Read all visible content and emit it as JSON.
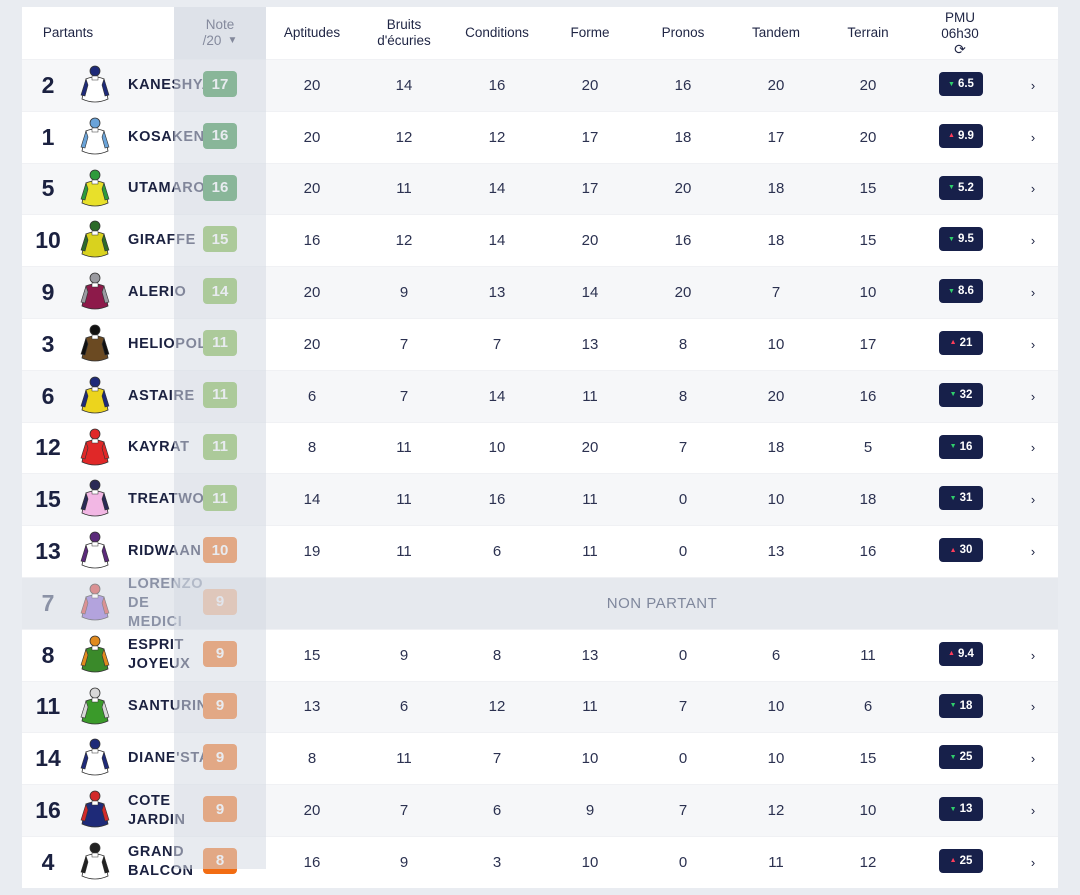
{
  "header": {
    "partants": "Partants",
    "note_line1": "Note",
    "note_line2": "/20",
    "sort_icon": "caret-down",
    "aptitudes": "Aptitudes",
    "bruits_line1": "Bruits",
    "bruits_line2": "d'écuries",
    "conditions": "Conditions",
    "forme": "Forme",
    "pronos": "Pronos",
    "tandem": "Tandem",
    "terrain": "Terrain",
    "pmu_line1": "PMU",
    "pmu_line2": "06h30",
    "refresh_icon": "⟳"
  },
  "non_partant_label": "NON PARTANT",
  "colors": {
    "dark_green": "#2e8b3e",
    "green": "#7ab641",
    "orange": "#f26c12",
    "odds_bg": "#17204a",
    "down": "#2fce6b",
    "up": "#ff3d5a"
  },
  "rows": [
    {
      "num": "2",
      "name": "KANESHYA",
      "note": "17",
      "note_color": "#2e8b3e",
      "aptitudes": "20",
      "bruits": "14",
      "conditions": "16",
      "forme": "20",
      "pronos": "16",
      "tandem": "20",
      "terrain": "20",
      "odds": "6.5",
      "trend": "down",
      "silk": [
        "#ffffff",
        "#1e2a78"
      ]
    },
    {
      "num": "1",
      "name": "KOSAKENZ EL",
      "note": "16",
      "note_color": "#2e8b3e",
      "aptitudes": "20",
      "bruits": "12",
      "conditions": "12",
      "forme": "17",
      "pronos": "18",
      "tandem": "17",
      "terrain": "20",
      "odds": "9.9",
      "trend": "up",
      "silk": [
        "#ffffff",
        "#6aa3d8"
      ]
    },
    {
      "num": "5",
      "name": "UTAMARO",
      "note": "16",
      "note_color": "#2e8b3e",
      "aptitudes": "20",
      "bruits": "11",
      "conditions": "14",
      "forme": "17",
      "pronos": "20",
      "tandem": "18",
      "terrain": "15",
      "odds": "5.2",
      "trend": "down",
      "silk": [
        "#e8e02a",
        "#2e9a3c"
      ]
    },
    {
      "num": "10",
      "name": "GIRAFFE",
      "note": "15",
      "note_color": "#7ab641",
      "aptitudes": "16",
      "bruits": "12",
      "conditions": "14",
      "forme": "20",
      "pronos": "16",
      "tandem": "18",
      "terrain": "15",
      "odds": "9.5",
      "trend": "down",
      "silk": [
        "#d9d21e",
        "#2d6a2a"
      ]
    },
    {
      "num": "9",
      "name": "ALERIO",
      "note": "14",
      "note_color": "#7ab641",
      "aptitudes": "20",
      "bruits": "9",
      "conditions": "13",
      "forme": "14",
      "pronos": "20",
      "tandem": "7",
      "terrain": "10",
      "odds": "8.6",
      "trend": "down",
      "silk": [
        "#8d1a4a",
        "#9a9aa0"
      ]
    },
    {
      "num": "3",
      "name": "HELIOPOLIS",
      "note": "11",
      "note_color": "#7ab641",
      "aptitudes": "20",
      "bruits": "7",
      "conditions": "7",
      "forme": "13",
      "pronos": "8",
      "tandem": "10",
      "terrain": "17",
      "odds": "21",
      "trend": "up",
      "silk": [
        "#6b4a22",
        "#111111"
      ]
    },
    {
      "num": "6",
      "name": "ASTAIRE",
      "note": "11",
      "note_color": "#7ab641",
      "aptitudes": "6",
      "bruits": "7",
      "conditions": "14",
      "forme": "11",
      "pronos": "8",
      "tandem": "20",
      "terrain": "16",
      "odds": "32",
      "trend": "down",
      "silk": [
        "#ecd41d",
        "#1e2a78"
      ]
    },
    {
      "num": "12",
      "name": "KAYRAT",
      "note": "11",
      "note_color": "#7ab641",
      "aptitudes": "8",
      "bruits": "11",
      "conditions": "10",
      "forme": "20",
      "pronos": "7",
      "tandem": "18",
      "terrain": "5",
      "odds": "16",
      "trend": "down",
      "silk": [
        "#e02828",
        "#e02828"
      ]
    },
    {
      "num": "15",
      "name": "TREATWOOD",
      "note": "11",
      "note_color": "#7ab641",
      "aptitudes": "14",
      "bruits": "11",
      "conditions": "16",
      "forme": "11",
      "pronos": "0",
      "tandem": "10",
      "terrain": "18",
      "odds": "31",
      "trend": "down",
      "silk": [
        "#f2b7e4",
        "#2a2a55"
      ]
    },
    {
      "num": "13",
      "name": "RIDWAAN",
      "note": "10",
      "note_color": "#f26c12",
      "aptitudes": "19",
      "bruits": "11",
      "conditions": "6",
      "forme": "11",
      "pronos": "0",
      "tandem": "13",
      "terrain": "16",
      "odds": "30",
      "trend": "up",
      "silk": [
        "#ffffff",
        "#5b2a7a"
      ]
    },
    {
      "num": "7",
      "name": "LORENZO DE MEDICI",
      "note": "9",
      "note_color": "#f26c12",
      "nonpartant": true,
      "silk": [
        "#8a6ad0",
        "#d24a4a"
      ]
    },
    {
      "num": "8",
      "name": "ESPRIT JOYEUX",
      "note": "9",
      "note_color": "#f26c12",
      "aptitudes": "15",
      "bruits": "9",
      "conditions": "8",
      "forme": "13",
      "pronos": "0",
      "tandem": "6",
      "terrain": "11",
      "odds": "9.4",
      "trend": "up",
      "silk": [
        "#3a8a2a",
        "#e08a1e"
      ]
    },
    {
      "num": "11",
      "name": "SANTURIN",
      "note": "9",
      "note_color": "#f26c12",
      "aptitudes": "13",
      "bruits": "6",
      "conditions": "12",
      "forme": "11",
      "pronos": "7",
      "tandem": "10",
      "terrain": "6",
      "odds": "18",
      "trend": "down",
      "silk": [
        "#3a9a2a",
        "#d8d8d8"
      ]
    },
    {
      "num": "14",
      "name": "DIANE'STAR",
      "note": "9",
      "note_color": "#f26c12",
      "aptitudes": "8",
      "bruits": "11",
      "conditions": "7",
      "forme": "10",
      "pronos": "0",
      "tandem": "10",
      "terrain": "15",
      "odds": "25",
      "trend": "down",
      "silk": [
        "#ffffff",
        "#1e2a78"
      ]
    },
    {
      "num": "16",
      "name": "COTE JARDIN",
      "note": "9",
      "note_color": "#f26c12",
      "aptitudes": "20",
      "bruits": "7",
      "conditions": "6",
      "forme": "9",
      "pronos": "7",
      "tandem": "12",
      "terrain": "10",
      "odds": "13",
      "trend": "down",
      "silk": [
        "#1e2a78",
        "#d22a2a"
      ]
    },
    {
      "num": "4",
      "name": "GRAND BALCON",
      "note": "8",
      "note_color": "#f26c12",
      "aptitudes": "16",
      "bruits": "9",
      "conditions": "3",
      "forme": "10",
      "pronos": "0",
      "tandem": "11",
      "terrain": "12",
      "odds": "25",
      "trend": "up",
      "silk": [
        "#ffffff",
        "#222222"
      ]
    }
  ]
}
